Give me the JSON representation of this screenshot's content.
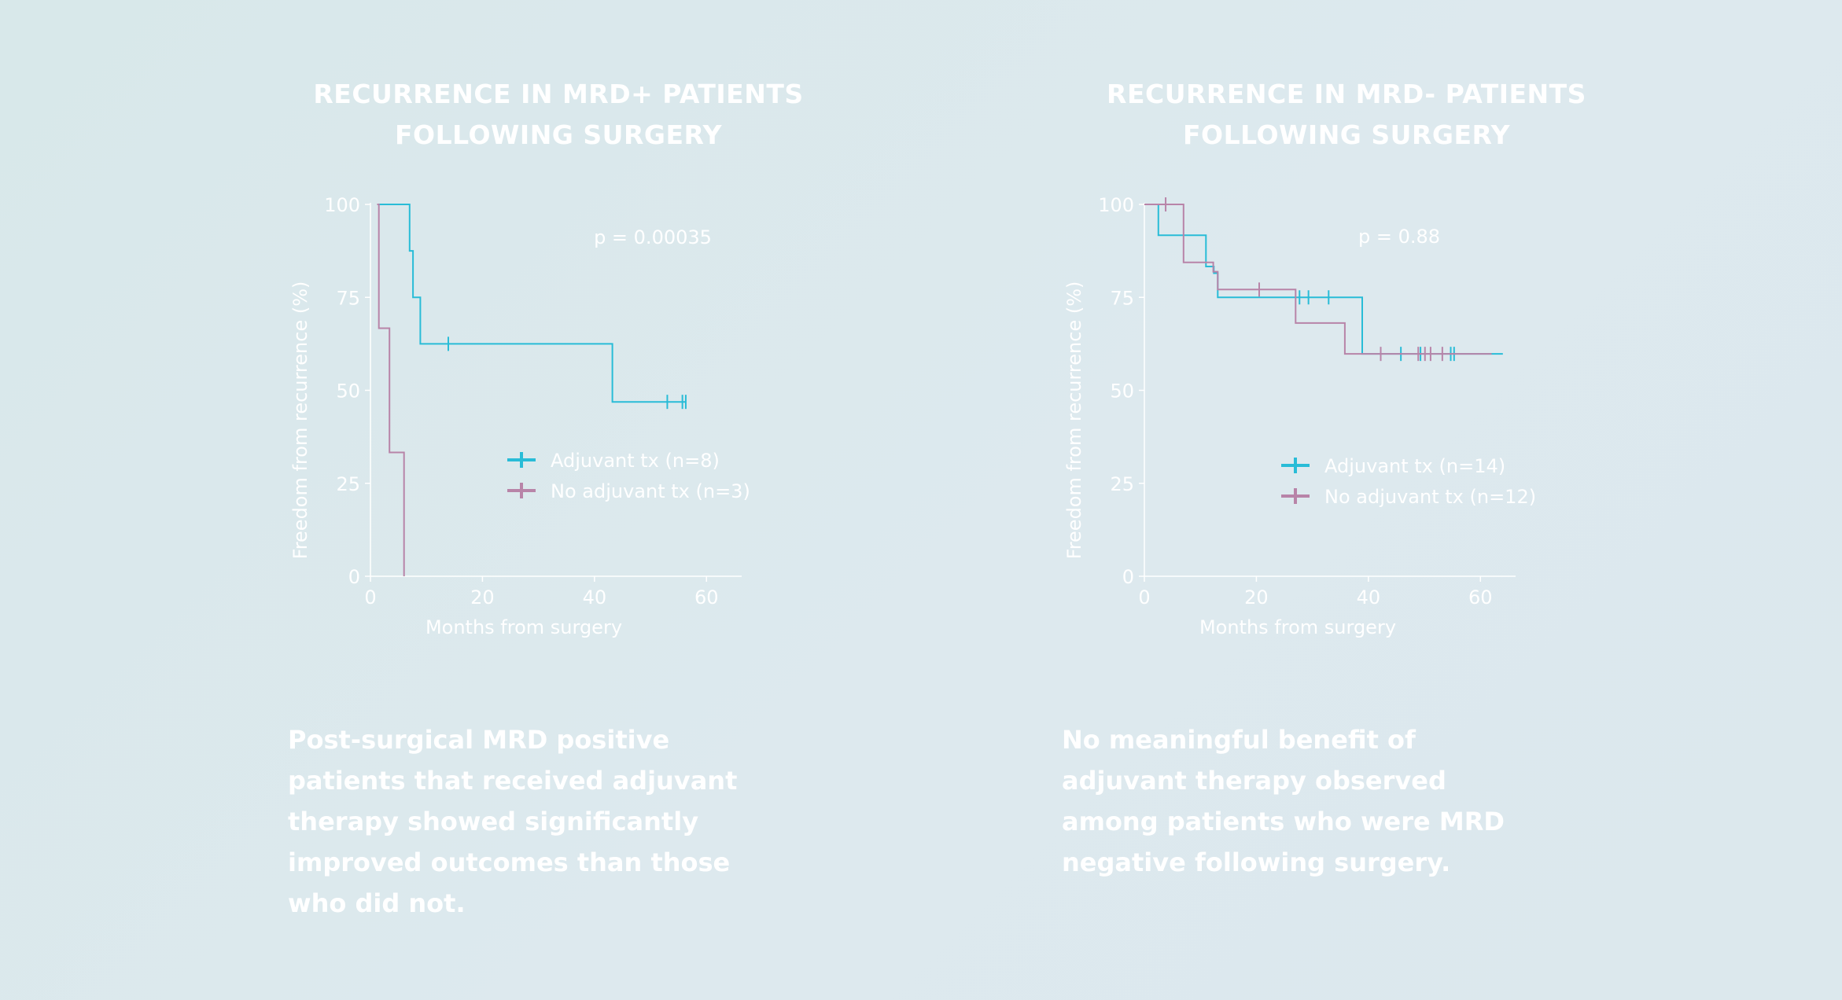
{
  "chart_data": [
    {
      "type": "line",
      "title": [
        "RECURRENCE IN MRD+ PATIENTS",
        "FOLLOWING SURGERY"
      ],
      "xlabel": "Months from surgery",
      "ylabel": "Freedom from recurrence (%)",
      "xlim": [
        0,
        66
      ],
      "ylim": [
        0,
        100
      ],
      "xticks": [
        0,
        20,
        40,
        60
      ],
      "yticks": [
        0,
        25,
        50,
        75,
        100
      ],
      "annotation": "p = 0.00035",
      "legend_position": "center-right",
      "series": [
        {
          "name": "Adjuvant tx (n=8)",
          "color": "#29bcd7",
          "x": [
            1.2,
            7,
            7,
            7.6,
            7.6,
            8.9,
            8.9,
            43.2,
            43.2,
            56.3
          ],
          "y": [
            100,
            100,
            87.5,
            87.5,
            75,
            75,
            62.5,
            62.5,
            46.9,
            46.9
          ],
          "censored": [
            [
              13.9,
              62.5
            ],
            [
              53,
              46.9
            ],
            [
              55.7,
              46.9
            ],
            [
              56.3,
              46.9
            ]
          ]
        },
        {
          "name": "No adjuvant tx (n=3)",
          "color": "#b884a8",
          "x": [
            1.2,
            1.5,
            1.5,
            3.4,
            3.4,
            6,
            6
          ],
          "y": [
            100,
            100,
            66.7,
            66.7,
            33.3,
            33.3,
            0
          ],
          "censored": []
        }
      ]
    },
    {
      "type": "line",
      "title": [
        "RECURRENCE IN MRD- PATIENTS",
        "FOLLOWING SURGERY"
      ],
      "xlabel": "Months from surgery",
      "ylabel": "Freedom from recurrence (%)",
      "xlim": [
        0,
        66
      ],
      "ylim": [
        0,
        100
      ],
      "xticks": [
        0,
        20,
        40,
        60
      ],
      "yticks": [
        0,
        25,
        50,
        75,
        100
      ],
      "annotation": "p = 0.88",
      "legend_position": "center-right",
      "series": [
        {
          "name": "Adjuvant tx (n=14)",
          "color": "#29bcd7",
          "x": [
            0,
            2.5,
            2.5,
            11,
            11,
            12.4,
            12.4,
            13.1,
            13.1,
            38.9,
            38.9,
            64
          ],
          "y": [
            100,
            100,
            91.7,
            91.7,
            83.3,
            83.3,
            81.5,
            81.5,
            75,
            75,
            59.8,
            59.8
          ],
          "censored": [
            [
              27.7,
              75
            ],
            [
              29.3,
              75
            ],
            [
              32.9,
              75
            ],
            [
              45.8,
              59.8
            ],
            [
              49.3,
              59.8
            ],
            [
              54.7,
              59.8
            ],
            [
              55.3,
              59.8
            ]
          ]
        },
        {
          "name": "No adjuvant tx (n=12)",
          "color": "#b884a8",
          "x": [
            0,
            7,
            7,
            12.3,
            12.3,
            13.1,
            13.1,
            27,
            27,
            35.8,
            35.8,
            62
          ],
          "y": [
            100,
            100,
            84.4,
            84.4,
            81.9,
            81.9,
            77.1,
            77.1,
            68.1,
            68.1,
            59.8,
            59.8
          ],
          "censored": [
            [
              3.8,
              100
            ],
            [
              20.5,
              77.1
            ],
            [
              42.2,
              59.8
            ],
            [
              48.9,
              59.8
            ],
            [
              50.1,
              59.8
            ],
            [
              51.1,
              59.8
            ],
            [
              53.2,
              59.8
            ]
          ]
        }
      ]
    }
  ],
  "captions": [
    [
      "Post-surgical MRD positive",
      "patients that received adjuvant",
      "therapy showed significantly",
      "improved outcomes than those",
      "who did not."
    ],
    [
      "No meaningful benefit of",
      "adjuvant therapy observed",
      "among patients who were MRD",
      "negative following surgery."
    ]
  ]
}
